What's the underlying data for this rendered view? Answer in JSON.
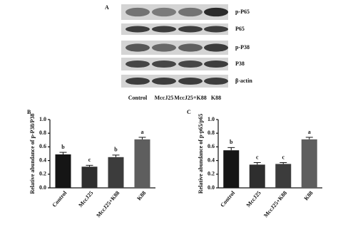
{
  "blot": {
    "panel": "A",
    "proteins": [
      "p-P65",
      "P65",
      "p-P38",
      "P38",
      "β-actin"
    ],
    "lanes": [
      "Control",
      "MccJ25",
      "MccJ25+K88",
      "K88"
    ]
  },
  "chart_data": [
    {
      "type": "bar",
      "panel": "B",
      "ylabel": "Relative abundance of p-P38/P38",
      "categories": [
        "Control",
        "MccJ25",
        "MccJ25+K88",
        "K88"
      ],
      "values": [
        0.49,
        0.31,
        0.45,
        0.71
      ],
      "errors": [
        0.03,
        0.02,
        0.03,
        0.03
      ],
      "annotations": [
        "b",
        "c",
        "b",
        "a"
      ],
      "colors": [
        "#151515",
        "#2e2e2e",
        "#3c3c3c",
        "#5e5e5e"
      ],
      "ylim": [
        0,
        1
      ],
      "yticks": [
        {
          "value": 0,
          "label": "0.0"
        },
        {
          "value": 0.2,
          "label": "0.2"
        },
        {
          "value": 0.4,
          "label": "0.4"
        },
        {
          "value": 0.6,
          "label": "0.6"
        },
        {
          "value": 0.8,
          "label": "0.8"
        },
        {
          "value": 1,
          "label": "1.0"
        }
      ]
    },
    {
      "type": "bar",
      "panel": "C",
      "ylabel": "Relative abundance of p-p65/p65",
      "categories": [
        "Control",
        "MccJ25",
        "MccJ25+K88",
        "K88"
      ],
      "values": [
        0.55,
        0.34,
        0.35,
        0.71
      ],
      "errors": [
        0.04,
        0.03,
        0.02,
        0.03
      ],
      "annotations": [
        "b",
        "c",
        "c",
        "a"
      ],
      "colors": [
        "#151515",
        "#2e2e2e",
        "#3c3c3c",
        "#5e5e5e"
      ],
      "ylim": [
        0,
        1
      ],
      "yticks": [
        {
          "value": 0,
          "label": "0.0"
        },
        {
          "value": 0.2,
          "label": "0.2"
        },
        {
          "value": 0.4,
          "label": "0.4"
        },
        {
          "value": 0.6,
          "label": "0.6"
        },
        {
          "value": 0.8,
          "label": "0.8"
        },
        {
          "value": 1,
          "label": "1.0"
        }
      ]
    }
  ]
}
